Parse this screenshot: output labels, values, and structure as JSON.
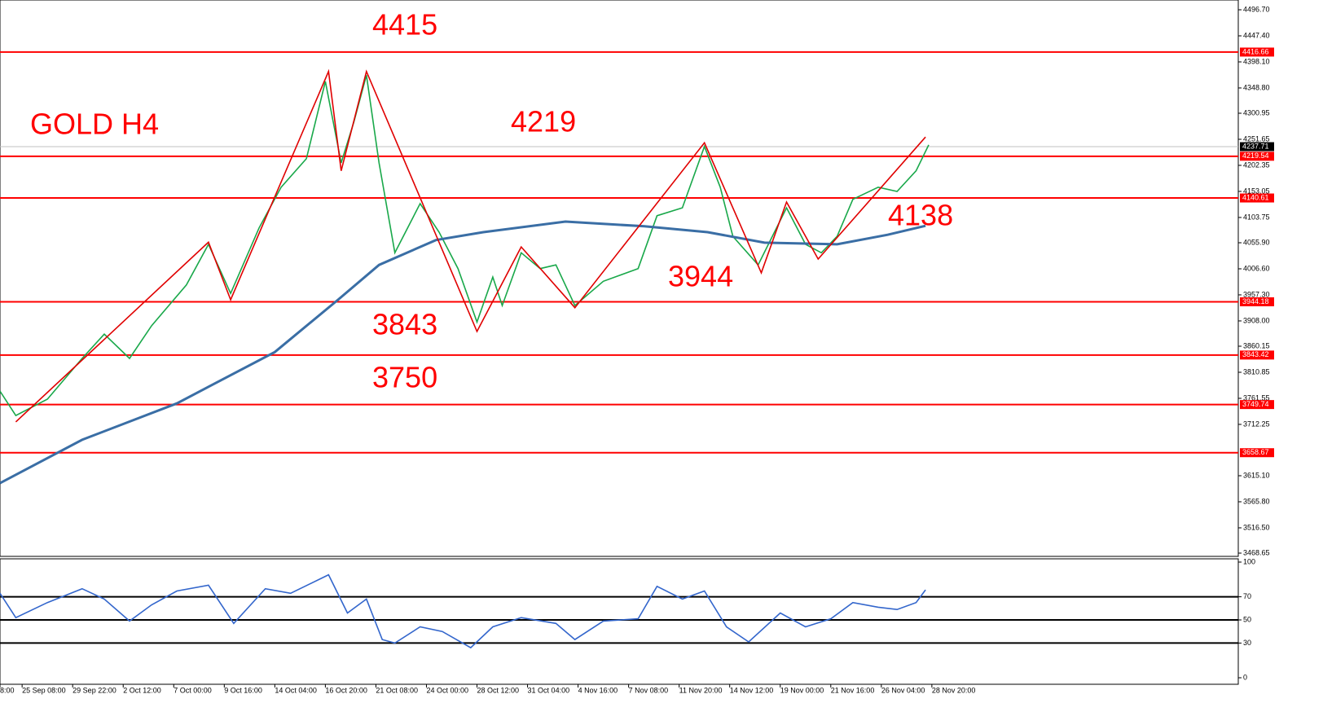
{
  "chart_data": [
    {
      "type": "line",
      "title": "GOLD H4",
      "annotations": [
        "4415",
        "4219",
        "4138",
        "3944",
        "3843",
        "3750"
      ],
      "xlim": [
        0,
        392
      ],
      "ylim": [
        3462.5,
        4515.2
      ],
      "yticks": [
        {
          "value": 4496.7,
          "label": "4496.70"
        },
        {
          "value": 4447.4,
          "label": "4447.40"
        },
        {
          "value": 4398.1,
          "label": "4398.10"
        },
        {
          "value": 4348.8,
          "label": "4348.80"
        },
        {
          "value": 4300.95,
          "label": "4300.95"
        },
        {
          "value": 4251.65,
          "label": "4251.65"
        },
        {
          "value": 4202.35,
          "label": "4202.35"
        },
        {
          "value": 4153.05,
          "label": "4153.05"
        },
        {
          "value": 4103.75,
          "label": "4103.75"
        },
        {
          "value": 4055.9,
          "label": "4055.90"
        },
        {
          "value": 4006.6,
          "label": "4006.60"
        },
        {
          "value": 3957.3,
          "label": "3957.30"
        },
        {
          "value": 3908,
          "label": "3908.00"
        },
        {
          "value": 3860.15,
          "label": "3860.15"
        },
        {
          "value": 3810.85,
          "label": "3810.85"
        },
        {
          "value": 3761.55,
          "label": "3761.55"
        },
        {
          "value": 3712.25,
          "label": "3712.25"
        },
        {
          "value": 3615.1,
          "label": "3615.10"
        },
        {
          "value": 3565.8,
          "label": "3565.80"
        },
        {
          "value": 3516.5,
          "label": "3516.50"
        },
        {
          "value": 3468.65,
          "label": "3468.65"
        }
      ],
      "levels": [
        4416.66,
        4219.54,
        4140.61,
        3944.18,
        3843.42,
        3749.74,
        3658.67
      ],
      "level_color": "#ff0000",
      "current_price": 4237.71,
      "series": [
        {
          "color": "#19a84a",
          "x": [
            0,
            5,
            15,
            26,
            33,
            41,
            48,
            59,
            66,
            73,
            82,
            89,
            97,
            103,
            108,
            112,
            116,
            120,
            125,
            133,
            139,
            145,
            151,
            156,
            159,
            165,
            171,
            176,
            182,
            191,
            202,
            208,
            216,
            223,
            228,
            232,
            240,
            249,
            255,
            260,
            265,
            270,
            278,
            284,
            290,
            294
          ],
          "values": [
            3775,
            3729,
            3760,
            3837,
            3883,
            3837,
            3899,
            3976,
            4053,
            3960,
            4084,
            4161,
            4215,
            4361,
            4207,
            4284,
            4373,
            4207,
            4037,
            4130,
            4076,
            4007,
            3906,
            3991,
            3937,
            4037,
            4007,
            4014,
            3937,
            3983,
            4007,
            4107,
            4122,
            4238,
            4161,
            4068,
            4014,
            4122,
            4053,
            4037,
            4068,
            4138,
            4161,
            4153,
            4192,
            4241
          ]
        },
        {
          "color": "#3a6ea5",
          "x": [
            0,
            26,
            56,
            87,
            107,
            120,
            138,
            153,
            179,
            204,
            224,
            242,
            265,
            281,
            293
          ],
          "values": [
            3601,
            3683,
            3752,
            3849,
            3948,
            4014,
            4061,
            4076,
            4096,
            4087,
            4076,
            4056,
            4053,
            4071,
            4088
          ]
        },
        {
          "color": "#e00000",
          "x": [
            5,
            66,
            73,
            104,
            108,
            116,
            151,
            165,
            182,
            223,
            241,
            249,
            259,
            293
          ],
          "values": [
            3717,
            4057,
            3948,
            4380,
            4192,
            4380,
            3888,
            4048,
            3933,
            4245,
            3999,
            4133,
            4025,
            4256
          ]
        }
      ]
    },
    {
      "type": "line",
      "xlim": [
        0,
        392
      ],
      "ylim": [
        0,
        100
      ],
      "yticks": [
        0,
        30,
        50,
        70,
        100
      ],
      "levels": [
        30,
        50,
        70
      ],
      "level_color": "#000000",
      "xticks": [
        {
          "value": 0,
          "label": "8:00"
        },
        {
          "value": 7,
          "label": "25 Sep 08:00"
        },
        {
          "value": 23,
          "label": "29 Sep 22:00"
        },
        {
          "value": 39,
          "label": "2 Oct 12:00"
        },
        {
          "value": 55,
          "label": "7 Oct 00:00"
        },
        {
          "value": 71,
          "label": "9 Oct 16:00"
        },
        {
          "value": 87,
          "label": "14 Oct 04:00"
        },
        {
          "value": 103,
          "label": "16 Oct 20:00"
        },
        {
          "value": 119,
          "label": "21 Oct 08:00"
        },
        {
          "value": 135,
          "label": "24 Oct 00:00"
        },
        {
          "value": 151,
          "label": "28 Oct 12:00"
        },
        {
          "value": 167,
          "label": "31 Oct 04:00"
        },
        {
          "value": 183,
          "label": "4 Nov 16:00"
        },
        {
          "value": 199,
          "label": "7 Nov 08:00"
        },
        {
          "value": 215,
          "label": "11 Nov 20:00"
        },
        {
          "value": 231,
          "label": "14 Nov 12:00"
        },
        {
          "value": 247,
          "label": "19 Nov 00:00"
        },
        {
          "value": 263,
          "label": "21 Nov 16:00"
        },
        {
          "value": 279,
          "label": "26 Nov 04:00"
        },
        {
          "value": 295,
          "label": "28 Nov 20:00"
        }
      ],
      "series": [
        {
          "color": "#3366cc",
          "x": [
            0,
            5,
            15,
            26,
            33,
            41,
            48,
            56,
            66,
            74,
            84,
            92,
            104,
            110,
            116,
            121,
            125,
            133,
            140,
            149,
            156,
            165,
            176,
            182,
            191,
            202,
            208,
            216,
            223,
            230,
            237,
            247,
            255,
            263,
            270,
            278,
            284,
            290,
            293
          ],
          "values": [
            73,
            52,
            65,
            77,
            68,
            49,
            63,
            75,
            80,
            47,
            77,
            73,
            89,
            56,
            68,
            33,
            30,
            44,
            40,
            26,
            44,
            52,
            47,
            33,
            49,
            51,
            79,
            68,
            75,
            44,
            31,
            56,
            44,
            51,
            65,
            61,
            59,
            65,
            76
          ]
        }
      ]
    }
  ]
}
